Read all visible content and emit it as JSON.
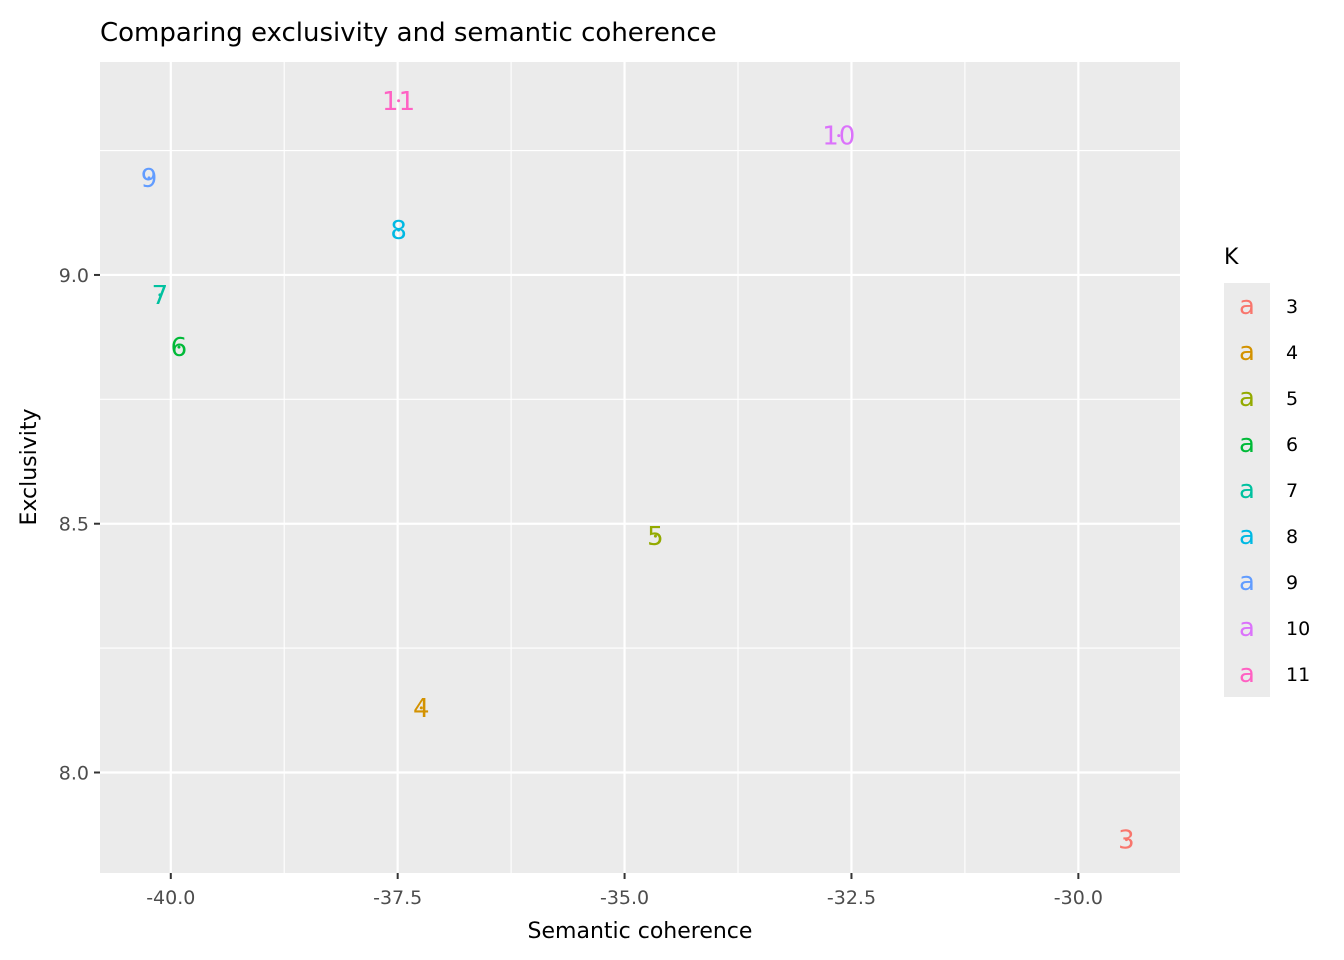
{
  "chart_data": {
    "type": "scatter",
    "title": "Comparing exclusivity and semantic coherence",
    "xlabel": "Semantic coherence",
    "ylabel": "Exclusivity",
    "xlim": [
      -40.78,
      -28.88
    ],
    "ylim": [
      7.798,
      9.428
    ],
    "x_ticks": [
      -40.0,
      -37.5,
      -35.0,
      -32.5,
      -30.0
    ],
    "x_tick_labels": [
      "-40.0",
      "-37.5",
      "-35.0",
      "-32.5",
      "-30.0"
    ],
    "y_ticks": [
      8.0,
      8.5,
      9.0
    ],
    "y_tick_labels": [
      "8.0",
      "8.5",
      "9.0"
    ],
    "grid": true,
    "legend": {
      "title": "K",
      "placement": "right",
      "key_glyph": "a",
      "entries": [
        "3",
        "4",
        "5",
        "6",
        "7",
        "8",
        "9",
        "10",
        "11"
      ]
    },
    "points": [
      {
        "label": "3",
        "x": -29.47,
        "y": 7.865,
        "color": "#F8766D"
      },
      {
        "label": "4",
        "x": -37.24,
        "y": 8.13,
        "color": "#D39200"
      },
      {
        "label": "5",
        "x": -34.66,
        "y": 8.475,
        "color": "#93AA00"
      },
      {
        "label": "6",
        "x": -39.91,
        "y": 8.855,
        "color": "#00BA38"
      },
      {
        "label": "7",
        "x": -40.12,
        "y": 8.96,
        "color": "#00C19F"
      },
      {
        "label": "8",
        "x": -37.49,
        "y": 9.09,
        "color": "#00B9E3"
      },
      {
        "label": "9",
        "x": -40.24,
        "y": 9.195,
        "color": "#619CFF"
      },
      {
        "label": "10",
        "x": -32.64,
        "y": 9.28,
        "color": "#DB72FB"
      },
      {
        "label": "11",
        "x": -37.49,
        "y": 9.35,
        "color": "#FF61C3"
      }
    ]
  }
}
